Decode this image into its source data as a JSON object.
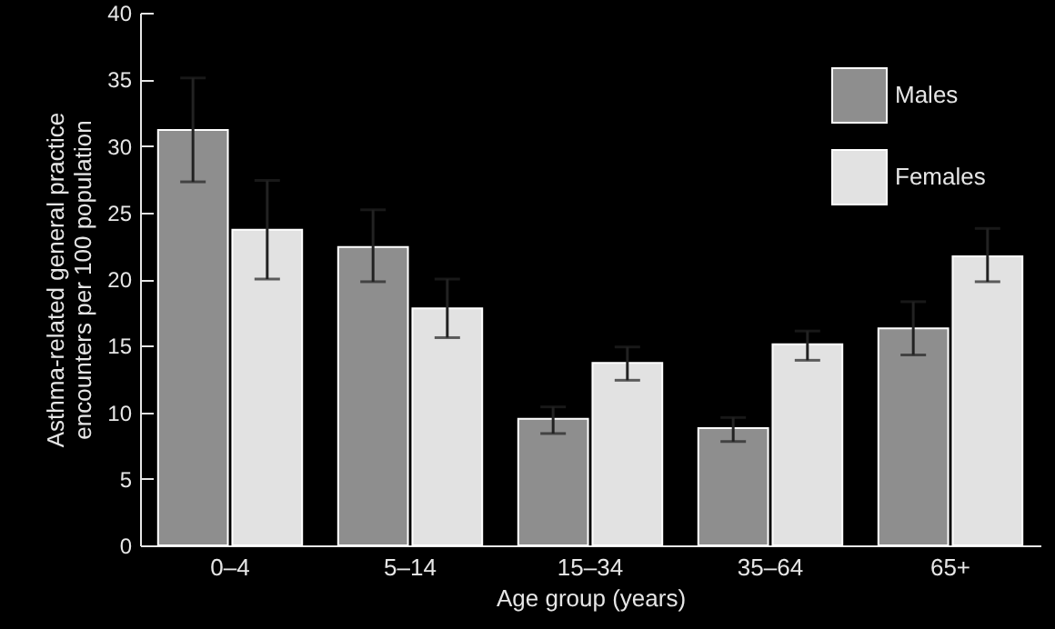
{
  "chart_data": {
    "type": "bar",
    "xlabel": "Age group (years)",
    "ylabel": "Asthma-related general practice encounters per 100 population",
    "categories": [
      "0–4",
      "5–14",
      "15–34",
      "35–64",
      "65+"
    ],
    "ylim": [
      0,
      40
    ],
    "yticks": [
      0,
      5,
      10,
      15,
      20,
      25,
      30,
      35,
      40
    ],
    "legend": "top right",
    "series": [
      {
        "name": "Males",
        "color": "#8e8e8e",
        "values": [
          31.2,
          22.4,
          9.5,
          8.8,
          16.3
        ],
        "errors": [
          [
            27.3,
            35.1
          ],
          [
            19.8,
            25.2
          ],
          [
            8.4,
            10.4
          ],
          [
            7.8,
            9.6
          ],
          [
            14.3,
            18.3
          ]
        ]
      },
      {
        "name": "Females",
        "color": "#e2e2e2",
        "values": [
          23.7,
          17.8,
          13.7,
          15.1,
          21.7
        ],
        "errors": [
          [
            20.0,
            27.4
          ],
          [
            15.6,
            20.0
          ],
          [
            12.4,
            14.9
          ],
          [
            13.9,
            16.1
          ],
          [
            19.8,
            23.8
          ]
        ]
      }
    ]
  }
}
